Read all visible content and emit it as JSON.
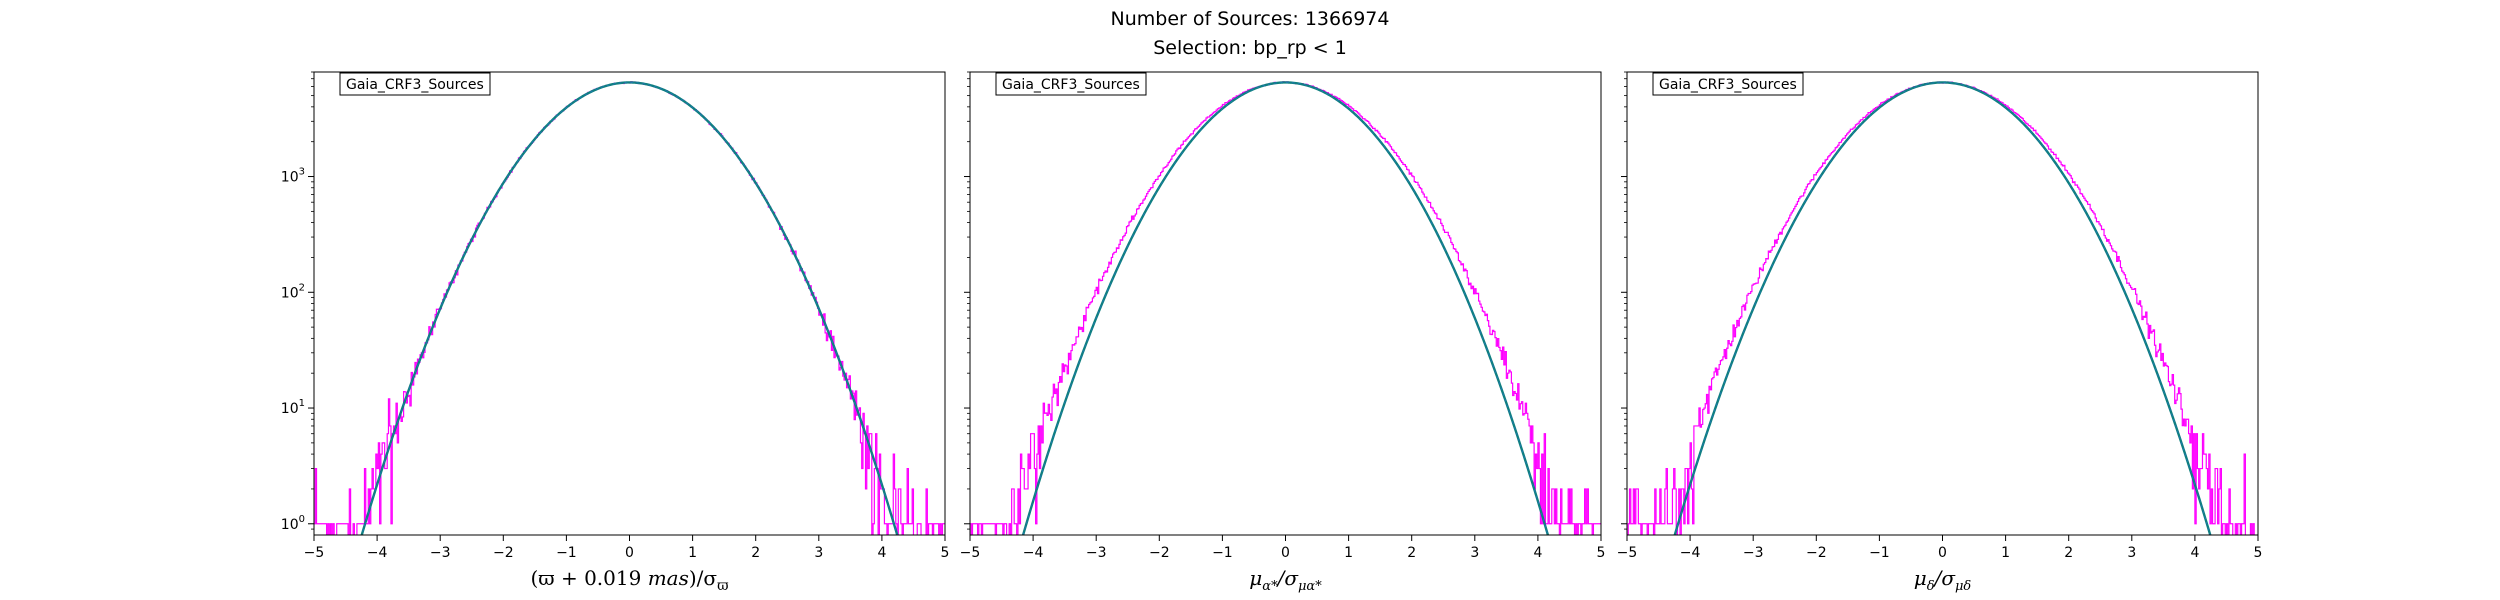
{
  "figure": {
    "suptitle_line1": "Number of Sources: 1366974",
    "suptitle_line2": "Selection: bp_rp < 1",
    "colors": {
      "histogram": "#ff00ff",
      "fit": "#0f7f7f",
      "fit_overlay": "#1f77b4",
      "axes": "#000000"
    }
  },
  "chart_data": [
    {
      "type": "line",
      "panel": "parallax",
      "legend": "Gaia_CRF3_Sources",
      "legend_placement": "top-left",
      "xlabel": "(ϖ + 0.019 mas)/σϖ",
      "xlabel_parts": {
        "main": "(ϖ + 0.019 ",
        "mid": "mas",
        "tail": ")/σ",
        "sub": "ϖ"
      },
      "xlim": [
        -5,
        5
      ],
      "ylim": [
        0.8,
        8000
      ],
      "yscale": "log",
      "xticks": [
        -5,
        -4,
        -3,
        -2,
        -1,
        0,
        1,
        2,
        3,
        4,
        5
      ],
      "yticks": [
        1,
        10,
        100,
        1000
      ],
      "ytick_labels": [
        {
          "base": "10",
          "exp": "0"
        },
        {
          "base": "10",
          "exp": "1"
        },
        {
          "base": "10",
          "exp": "2"
        },
        {
          "base": "10",
          "exp": "3"
        }
      ],
      "grid": false,
      "series": [
        {
          "name": "Gaia_CRF3_Sources",
          "style": "step-histogram",
          "peak": 6500,
          "sigma": 1.0,
          "noise_floor": 1
        },
        {
          "style": "gaussian-fit",
          "peak": 6500,
          "sigma": 1.0
        }
      ]
    },
    {
      "type": "line",
      "panel": "pmra",
      "legend": "Gaia_CRF3_Sources",
      "legend_placement": "top-left",
      "xlabel": "μα*/σμα*",
      "xlabel_parts": {
        "main": "μ",
        "sub1": "α*",
        "mid": "/σ",
        "sub2": "μα*"
      },
      "xlim": [
        -5,
        5
      ],
      "ylim": [
        0.8,
        8000
      ],
      "yscale": "log",
      "xticks": [
        -5,
        -4,
        -3,
        -2,
        -1,
        0,
        1,
        2,
        3,
        4,
        5
      ],
      "grid": false,
      "series": [
        {
          "name": "Gaia_CRF3_Sources",
          "style": "step-histogram",
          "peak": 6500,
          "sigma": 1.04,
          "noise_floor": 1
        },
        {
          "style": "gaussian-fit",
          "peak": 6500,
          "sigma": 0.98
        }
      ]
    },
    {
      "type": "line",
      "panel": "pmdec",
      "legend": "Gaia_CRF3_Sources",
      "legend_placement": "top-left",
      "xlabel": "μδ/σμδ",
      "xlabel_parts": {
        "main": "μ",
        "sub1": "δ",
        "mid": "/σ",
        "sub2": "μδ"
      },
      "xlim": [
        -5,
        5
      ],
      "ylim": [
        0.8,
        8000
      ],
      "yscale": "log",
      "xticks": [
        -5,
        -4,
        -3,
        -2,
        -1,
        0,
        1,
        2,
        3,
        4,
        5
      ],
      "grid": false,
      "series": [
        {
          "name": "Gaia_CRF3_Sources",
          "style": "step-histogram",
          "peak": 6500,
          "sigma": 1.05,
          "noise_floor": 1
        },
        {
          "style": "gaussian-fit",
          "peak": 6500,
          "sigma": 1.0
        }
      ]
    }
  ]
}
